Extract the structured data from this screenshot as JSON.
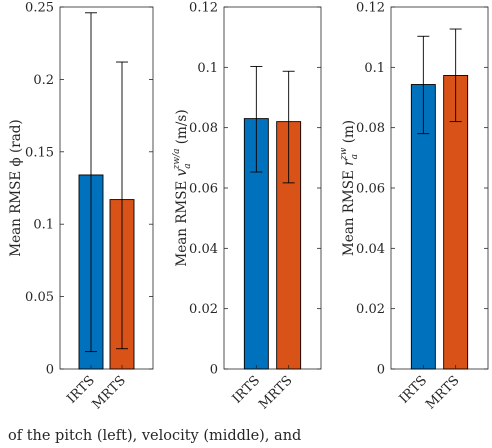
{
  "chart_data": [
    {
      "type": "bar",
      "categories": [
        "IRTS",
        "MRTS"
      ],
      "values": [
        0.134,
        0.117
      ],
      "error_upper": [
        0.246,
        0.212
      ],
      "error_lower": [
        0.012,
        0.014
      ],
      "colors": [
        "#0072BD",
        "#D95319"
      ],
      "ylabel": "Mean RMSE ϕ (rad)",
      "ylim": [
        0,
        0.25
      ],
      "yticks": [
        "0",
        "0.05",
        "0.1",
        "0.15",
        "0.2",
        "0.25"
      ],
      "grid": false
    },
    {
      "type": "bar",
      "categories": [
        "IRTS",
        "MRTS"
      ],
      "values": [
        0.083,
        0.082
      ],
      "error_upper": [
        0.1003,
        0.0987
      ],
      "error_lower": [
        0.0653,
        0.0617
      ],
      "colors": [
        "#0072BD",
        "#D95319"
      ],
      "ylabel": "Mean RMSE v_a^{zw/a} (m/s)",
      "ylim": [
        0,
        0.12
      ],
      "yticks": [
        "0",
        "0.02",
        "0.04",
        "0.06",
        "0.08",
        "0.1",
        "0.12"
      ],
      "grid": false
    },
    {
      "type": "bar",
      "categories": [
        "IRTS",
        "MRTS"
      ],
      "values": [
        0.0943,
        0.0973
      ],
      "error_upper": [
        0.1103,
        0.1127
      ],
      "error_lower": [
        0.078,
        0.082
      ],
      "colors": [
        "#0072BD",
        "#D95319"
      ],
      "ylabel": "Mean RMSE r_a^{zw} (m)",
      "ylim": [
        0,
        0.12
      ],
      "yticks": [
        "0",
        "0.02",
        "0.04",
        "0.06",
        "0.08",
        "0.1",
        "0.12"
      ],
      "grid": false
    }
  ],
  "caption_fragment": "of the pitch (left), velocity (middle), and"
}
